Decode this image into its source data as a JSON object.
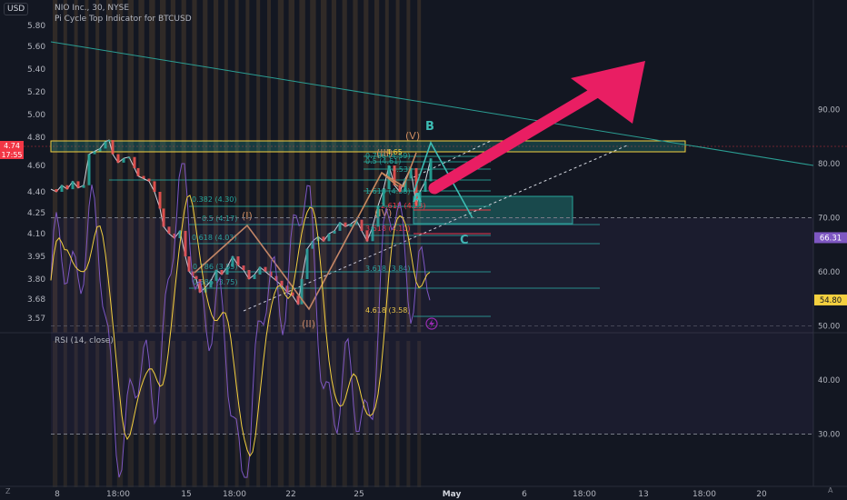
{
  "header": {
    "line1": "NIO Inc., 30, NYSE",
    "line2": "Pi Cycle Top Indicator for BTCUSD",
    "currency": "USD"
  },
  "price_axis": {
    "labels": [
      "5.80",
      "5.60",
      "5.40",
      "5.20",
      "5.00",
      "4.80",
      "4.60",
      "4.40",
      "4.25",
      "4.10",
      "3.95",
      "3.80",
      "3.68",
      "3.57"
    ],
    "last_price": "4.74",
    "countdown": "17:55"
  },
  "rsi": {
    "label": "RSI (14, close)",
    "axis_labels": [
      "90.00",
      "80.00",
      "70.00",
      "60.00",
      "50.00",
      "40.00",
      "30.00"
    ],
    "value": "66.31",
    "ma_value": "54.80"
  },
  "time_axis": {
    "labels": [
      "8",
      "18:00",
      "15",
      "18:00",
      "22",
      "25",
      "May",
      "6",
      "18:00",
      "13",
      "18:00",
      "20"
    ],
    "timezone_icon": "Z",
    "auto_label": "A"
  },
  "fib_labels": [
    "0.382 (4.30)",
    "0.5 (4.17)",
    "0.618 (4.03)",
    "0.786 (3.85)",
    "0.886 (3.75)",
    "0.786 (4.59)",
    "0.5 (4.61)",
    "(4.53)",
    "1.618 (4.38)",
    "2.618 (4.23)",
    "3.618 (4.10)",
    "3.618 (3.84)",
    "4.618 (3.58)",
    "4.65"
  ],
  "wave_labels": [
    "(I)",
    "(II)",
    "(III)",
    "(IV)",
    "(V)",
    "A",
    "B",
    "C"
  ],
  "colors": {
    "background": "#131722",
    "accent_arrow": "#e91e63",
    "wave": "#c8895f",
    "fib": "#26a69a",
    "rsi_line": "#7e57c2",
    "rsi_ma": "#f4d03f",
    "last_price": "#f23645"
  },
  "icons": [
    "lightning-icon"
  ]
}
